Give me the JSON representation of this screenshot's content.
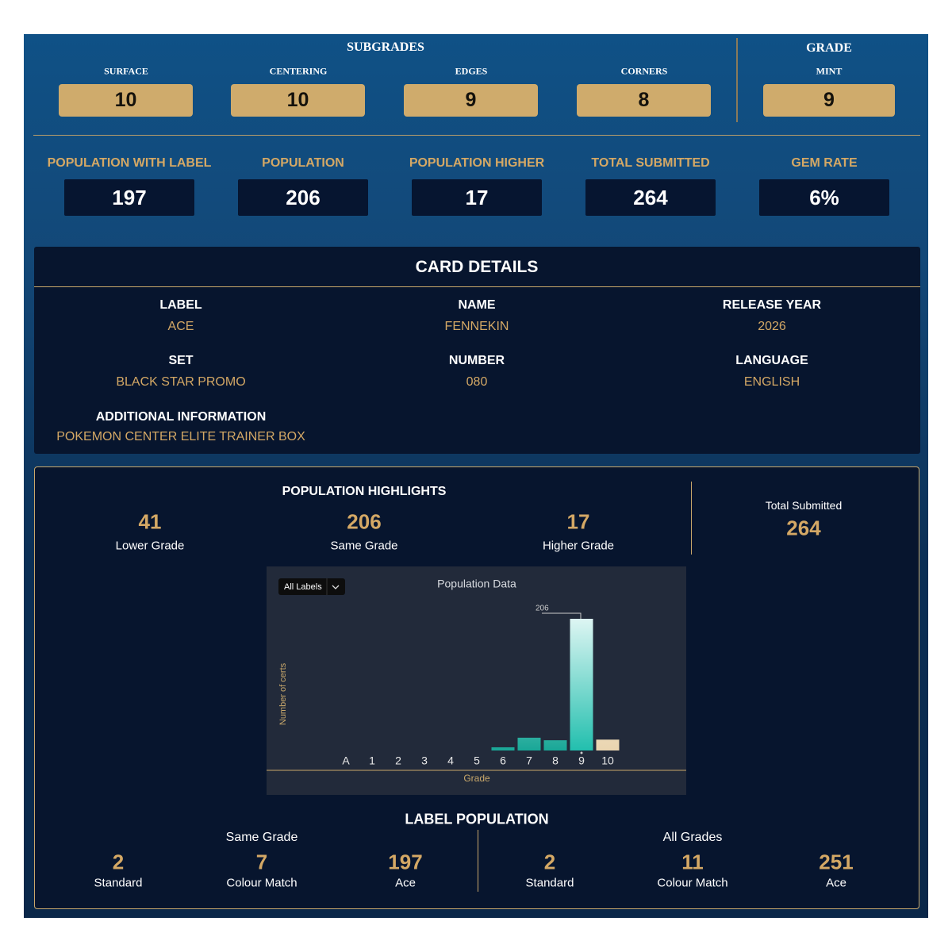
{
  "subgrades": {
    "title": "SUBGRADES",
    "items": [
      {
        "label": "SURFACE",
        "value": 10
      },
      {
        "label": "CENTERING",
        "value": 10
      },
      {
        "label": "EDGES",
        "value": 9
      },
      {
        "label": "CORNERS",
        "value": 8
      }
    ]
  },
  "grade": {
    "title": "GRADE",
    "label": "MINT",
    "value": 9
  },
  "stats": [
    {
      "label": "POPULATION WITH LABEL",
      "value": 197
    },
    {
      "label": "POPULATION",
      "value": 206
    },
    {
      "label": "POPULATION HIGHER",
      "value": 17
    },
    {
      "label": "TOTAL SUBMITTED",
      "value": 264
    },
    {
      "label": "GEM RATE",
      "value": "6%"
    }
  ],
  "card_details": {
    "title": "CARD DETAILS",
    "fields": [
      {
        "label": "LABEL",
        "value": "ACE"
      },
      {
        "label": "NAME",
        "value": "FENNEKIN"
      },
      {
        "label": "RELEASE YEAR",
        "value": "2026"
      },
      {
        "label": "SET",
        "value": "BLACK STAR PROMO"
      },
      {
        "label": "NUMBER",
        "value": "080"
      },
      {
        "label": "LANGUAGE",
        "value": "ENGLISH"
      }
    ],
    "additional": {
      "label": "ADDITIONAL INFORMATION",
      "value": "POKEMON CENTER ELITE TRAINER BOX"
    }
  },
  "highlights": {
    "title": "POPULATION HIGHLIGHTS",
    "items": [
      {
        "value": 41,
        "label": "Lower Grade"
      },
      {
        "value": 206,
        "label": "Same Grade"
      },
      {
        "value": 17,
        "label": "Higher Grade"
      }
    ],
    "total": {
      "label": "Total Submitted",
      "value": 264
    }
  },
  "chart_data": {
    "type": "bar",
    "title": "Population Data",
    "filter": "All Labels",
    "y_label": "Number of certs",
    "x_label": "Grade",
    "categories": [
      "A",
      "1",
      "2",
      "3",
      "4",
      "5",
      "6",
      "7",
      "8",
      "9",
      "10"
    ],
    "values": [
      0,
      0,
      0,
      0,
      0,
      0,
      5,
      20,
      16,
      206,
      17
    ],
    "colors": [
      "#19a797",
      "#19a797",
      "#19a797",
      "#19a797",
      "#19a797",
      "#19a797",
      "#19a797",
      "#19a797",
      "#19a797",
      "#22bfae",
      "#ead5b0"
    ],
    "ylim": [
      0,
      206
    ]
  },
  "label_population": {
    "title": "LABEL POPULATION",
    "groups": [
      {
        "title": "Same Grade",
        "items": [
          {
            "value": 2,
            "label": "Standard"
          },
          {
            "value": 7,
            "label": "Colour Match"
          },
          {
            "value": 197,
            "label": "Ace"
          }
        ]
      },
      {
        "title": "All Grades",
        "items": [
          {
            "value": 2,
            "label": "Standard"
          },
          {
            "value": 11,
            "label": "Colour Match"
          },
          {
            "value": 251,
            "label": "Ace"
          }
        ]
      }
    ]
  }
}
